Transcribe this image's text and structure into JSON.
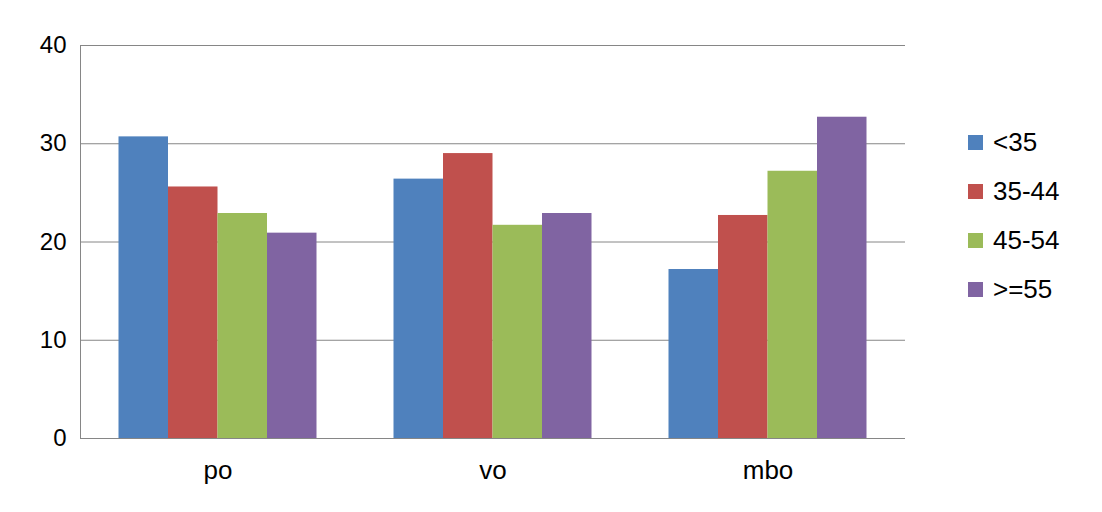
{
  "chart_data": {
    "type": "bar",
    "categories": [
      "po",
      "vo",
      "mbo"
    ],
    "series": [
      {
        "name": "<35",
        "color": "#4f81bd",
        "values": [
          30.7,
          26.4,
          17.2
        ]
      },
      {
        "name": "35-44",
        "color": "#c0504d",
        "values": [
          25.6,
          29.0,
          22.7
        ]
      },
      {
        "name": "45-54",
        "color": "#9bbb59",
        "values": [
          22.9,
          21.7,
          27.2
        ]
      },
      {
        "name": ">=55",
        "color": "#8064a2",
        "values": [
          20.9,
          22.9,
          32.7
        ]
      }
    ],
    "ylim": [
      0,
      40
    ],
    "yticks": [
      0,
      10,
      20,
      30,
      40
    ],
    "grid": true,
    "legend": "right"
  }
}
